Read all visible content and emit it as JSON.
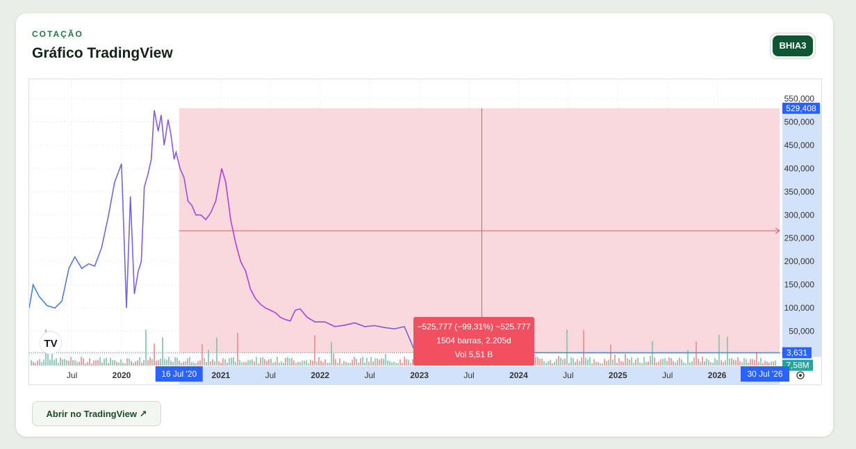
{
  "header": {
    "eyebrow": "COTAÇÃO",
    "title": "Gráfico TradingView",
    "ticker": "BHIA3"
  },
  "footer": {
    "open_button": "Abrir no TradingView ↗"
  },
  "colors": {
    "line_start": "#3f86e0",
    "line_peak": "#b43cdc",
    "measure_fill": "#f8c9cf",
    "measure_label": "#f0505f",
    "axis_highlight": "#2962ff",
    "brand": "#0e5633"
  },
  "icons": {
    "logo": "tradingview-logo-icon",
    "settings": "settings-gear-icon"
  },
  "chart_data": {
    "type": "line",
    "y_ticks": [
      "550,000",
      "500,000",
      "450,000",
      "400,000",
      "350,000",
      "300,000",
      "250,000",
      "200,000",
      "150,000",
      "100,000",
      "50,000"
    ],
    "y_tick_values": [
      550000,
      500000,
      450000,
      400000,
      350000,
      300000,
      250000,
      200000,
      150000,
      100000,
      50000
    ],
    "ylim": [
      -50000,
      570000
    ],
    "x_ticks": [
      "Jul",
      "2020",
      "2021",
      "Jul",
      "2022",
      "Jul",
      "2023",
      "Jul",
      "2024",
      "Jul",
      "2025",
      "Jul",
      "2026"
    ],
    "x_tick_dates": [
      2019.5,
      2020.0,
      2021.0,
      2021.5,
      2022.0,
      2022.5,
      2023.0,
      2023.5,
      2024.0,
      2024.5,
      2025.0,
      2025.5,
      2026.0
    ],
    "xlim": [
      2019.02,
      2027.0
    ],
    "series": [
      {
        "x": [
          2019.02,
          2019.06,
          2019.12,
          2019.2,
          2019.28,
          2019.35,
          2019.42,
          2019.48,
          2019.55,
          2019.62,
          2019.68,
          2019.75,
          2019.82,
          2019.88,
          2019.95,
          2020.0,
          2020.04,
          2020.08,
          2020.12,
          2020.15,
          2020.18,
          2020.22,
          2020.25,
          2020.28,
          2020.32,
          2020.35,
          2020.38,
          2020.42,
          2020.45,
          2020.48,
          2020.5,
          2020.54,
          2020.58,
          2020.62,
          2020.66,
          2020.7,
          2020.75,
          2020.8,
          2020.85,
          2020.9,
          2020.96,
          2021.0,
          2021.05,
          2021.1,
          2021.15,
          2021.2,
          2021.25,
          2021.3,
          2021.35,
          2021.4,
          2021.45,
          2021.5,
          2021.55,
          2021.6,
          2021.65,
          2021.7,
          2021.75,
          2021.82,
          2021.9,
          2022.0,
          2022.1,
          2022.2,
          2022.3,
          2022.4,
          2022.5,
          2022.6,
          2022.7,
          2022.8,
          2022.9,
          2023.0,
          2023.1,
          2023.2,
          2023.3,
          2023.4,
          2023.5,
          2023.6,
          2023.7,
          2023.8,
          2023.9,
          2024.0,
          2024.2,
          2024.4,
          2024.6,
          2024.8,
          2025.0,
          2025.2,
          2025.4,
          2025.6,
          2025.8,
          2026.0,
          2026.2,
          2026.4,
          2026.58
        ],
        "values": [
          100000,
          150000,
          125000,
          105000,
          100000,
          115000,
          185000,
          210000,
          185000,
          195000,
          190000,
          230000,
          300000,
          370000,
          410000,
          100000,
          340000,
          130000,
          180000,
          200000,
          360000,
          390000,
          420000,
          525000,
          480000,
          515000,
          450000,
          505000,
          470000,
          420000,
          435000,
          400000,
          380000,
          330000,
          320000,
          300000,
          300000,
          290000,
          305000,
          330000,
          400000,
          370000,
          290000,
          240000,
          200000,
          180000,
          140000,
          120000,
          108000,
          100000,
          95000,
          90000,
          80000,
          75000,
          72000,
          95000,
          98000,
          80000,
          70000,
          70000,
          60000,
          63000,
          68000,
          60000,
          62000,
          58000,
          55000,
          60000,
          10000,
          8000,
          6000,
          5500,
          5000,
          4800,
          4600,
          4500,
          4400,
          4200,
          4000,
          3900,
          3800,
          3700,
          3631,
          3631,
          3631,
          3631,
          3631,
          3631,
          3631,
          3631,
          3631,
          3631,
          3631
        ]
      }
    ],
    "volume_label": "7,58M",
    "last_price_label": "3,631",
    "peak_price_label": "529,408",
    "measure": {
      "change_text": "−525,777 (−99,31%) −525.777",
      "bars_text": "1504 barras, 2.205d",
      "volume_text": "Vol 5,51 B",
      "start_label": "16 Jul '20",
      "end_label": "30 Jul '26"
    },
    "grid": true
  }
}
